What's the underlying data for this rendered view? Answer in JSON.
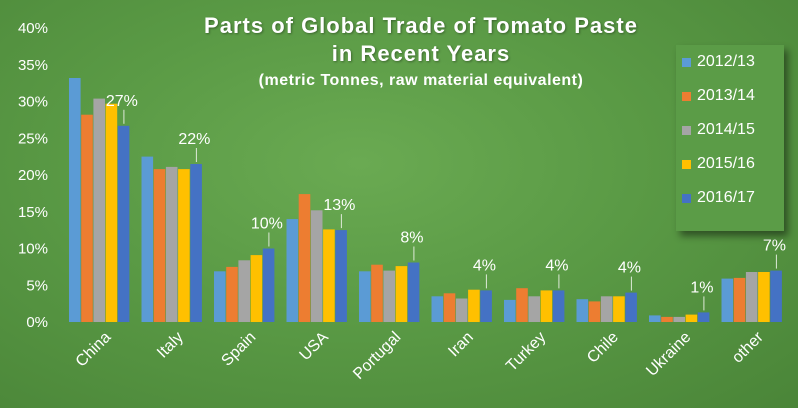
{
  "chart_data": {
    "type": "bar",
    "title": "Parts of Global Trade of Tomato Paste",
    "title_line2": "in Recent Years",
    "subtitle": "(metric Tonnes, raw material equivalent)",
    "ylim": [
      0,
      40
    ],
    "y_ticks": [
      "0%",
      "5%",
      "10%",
      "15%",
      "20%",
      "25%",
      "30%",
      "35%",
      "40%"
    ],
    "categories": [
      "China",
      "Italy",
      "Spain",
      "USA",
      "Portugal",
      "Iran",
      "Turkey",
      "Chile",
      "Ukraine",
      "other"
    ],
    "series": [
      {
        "name": "2012/13",
        "color": "#5b9bd5",
        "values": [
          33.2,
          22.5,
          6.9,
          14.0,
          6.9,
          3.5,
          3.0,
          3.1,
          0.9,
          5.9
        ]
      },
      {
        "name": "2013/14",
        "color": "#ed7d31",
        "values": [
          28.2,
          20.8,
          7.5,
          17.4,
          7.8,
          3.9,
          4.6,
          2.8,
          0.7,
          6.0
        ]
      },
      {
        "name": "2014/15",
        "color": "#a5a5a5",
        "values": [
          30.4,
          21.1,
          8.4,
          15.2,
          7.0,
          3.2,
          3.5,
          3.5,
          0.7,
          6.8
        ]
      },
      {
        "name": "2015/16",
        "color": "#ffc000",
        "values": [
          29.7,
          20.8,
          9.1,
          12.6,
          7.6,
          4.4,
          4.3,
          3.5,
          1.0,
          6.8
        ]
      },
      {
        "name": "2016/17",
        "color": "#4472c4",
        "values": [
          26.7,
          21.5,
          10.0,
          12.5,
          8.1,
          4.3,
          4.3,
          4.0,
          1.3,
          7.0
        ]
      }
    ],
    "data_labels": [
      "27%",
      "22%",
      "10%",
      "13%",
      "8%",
      "4%",
      "4%",
      "4%",
      "1%",
      "7%"
    ],
    "legend_position": "right",
    "grid": false
  }
}
